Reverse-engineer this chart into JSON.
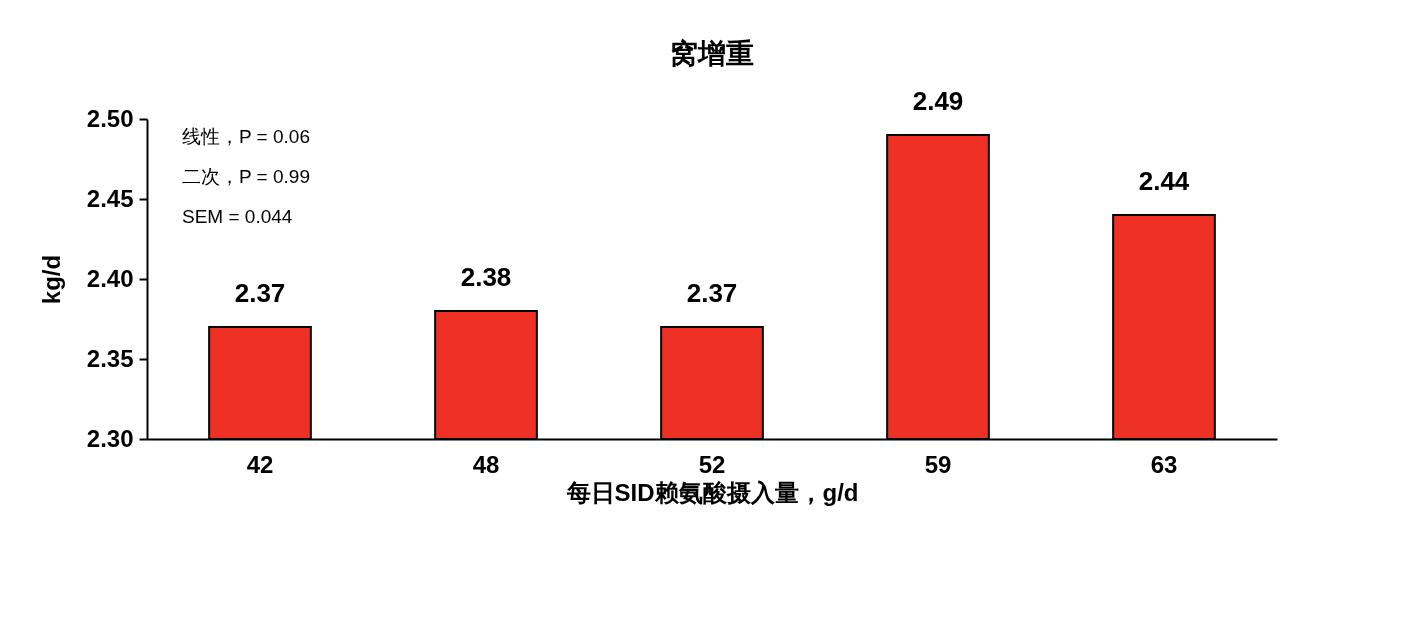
{
  "chart_data": {
    "type": "bar",
    "title": "窝增重",
    "xlabel": "每日SID赖氨酸摄入量，g/d",
    "ylabel": "kg/d",
    "categories": [
      "42",
      "48",
      "52",
      "59",
      "63"
    ],
    "values": [
      2.37,
      2.38,
      2.37,
      2.49,
      2.44
    ],
    "color": "#ee3124",
    "ylim": [
      2.3,
      2.5
    ],
    "yticks": [
      {
        "value": 2.3,
        "label": "2.30"
      },
      {
        "value": 2.35,
        "label": "2.35"
      },
      {
        "value": 2.4,
        "label": "2.40"
      },
      {
        "value": 2.45,
        "label": "2.45"
      },
      {
        "value": 2.5,
        "label": "2.50"
      }
    ],
    "data_labels": true,
    "annotations": [
      "线性，P = 0.06",
      "二次，P = 0.99",
      "SEM = 0.044"
    ]
  }
}
